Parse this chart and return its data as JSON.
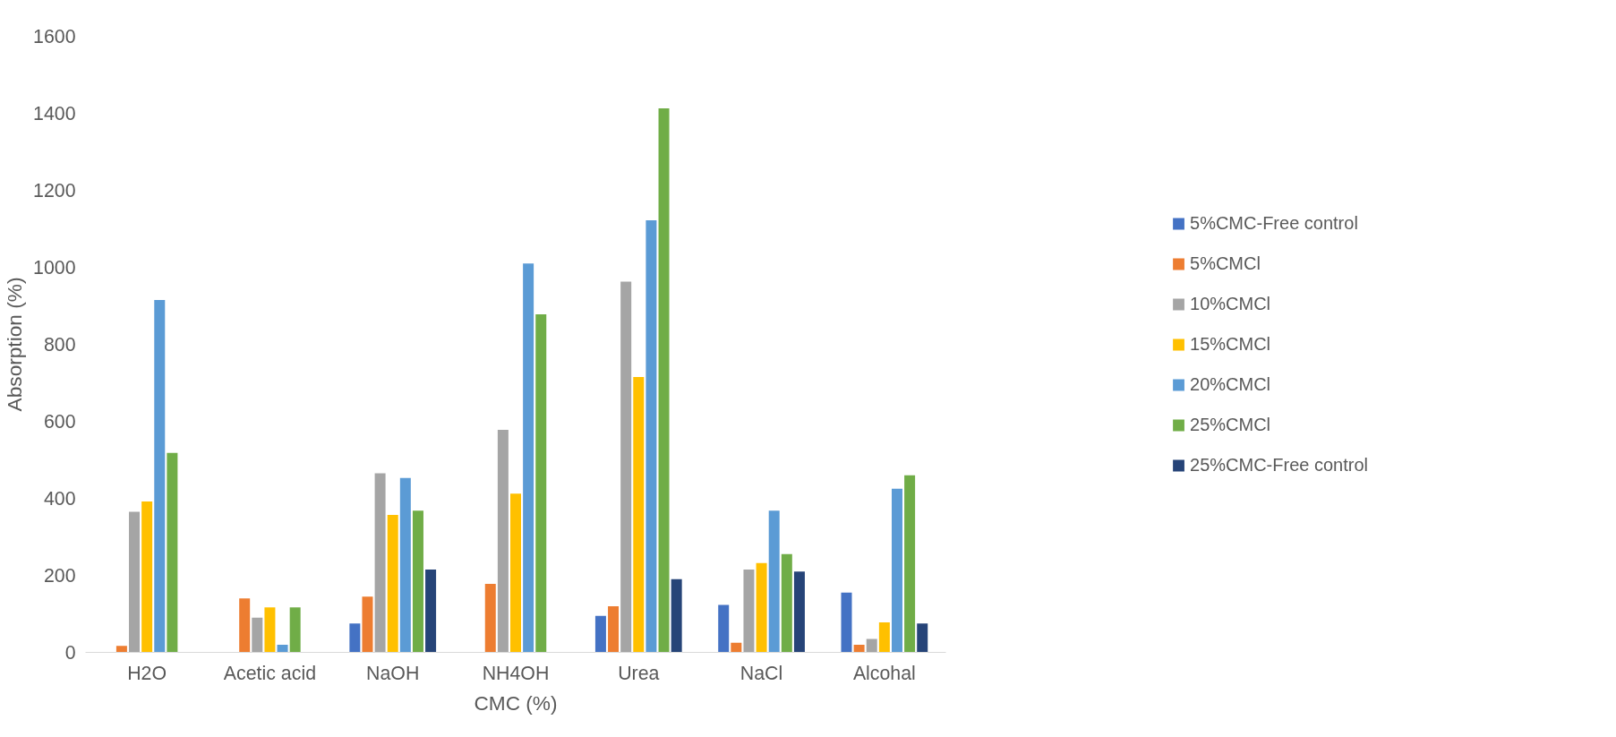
{
  "chart_data": {
    "type": "bar",
    "xlabel": "CMC (%)",
    "ylabel": "Absorption (%)",
    "categories": [
      "H2O",
      "Acetic acid",
      "NaOH",
      "NH4OH",
      "Urea",
      "NaCl",
      "Alcohal"
    ],
    "ylim": [
      0,
      1600
    ],
    "yticks": [
      0,
      200,
      400,
      600,
      800,
      1000,
      1200,
      1400,
      1600
    ],
    "grid": false,
    "legend": "right",
    "series": [
      {
        "name": "5%CMC-Free control",
        "color": "#4472c4",
        "values": [
          null,
          null,
          75,
          null,
          95,
          123,
          155
        ]
      },
      {
        "name": "5%CMCl",
        "color": "#ed7d31",
        "values": [
          17,
          140,
          145,
          178,
          120,
          25,
          20
        ]
      },
      {
        "name": "10%CMCl",
        "color": "#a5a5a5",
        "values": [
          365,
          90,
          465,
          578,
          963,
          215,
          35
        ]
      },
      {
        "name": "15%CMCl",
        "color": "#ffc000",
        "values": [
          392,
          117,
          357,
          412,
          715,
          232,
          78
        ]
      },
      {
        "name": "20%CMCl",
        "color": "#5b9bd5",
        "values": [
          915,
          20,
          453,
          1010,
          1122,
          368,
          425
        ]
      },
      {
        "name": "25%CMCl",
        "color": "#70ad47",
        "values": [
          518,
          117,
          368,
          878,
          1413,
          255,
          460
        ]
      },
      {
        "name": "25%CMC-Free control",
        "color": "#264478",
        "values": [
          null,
          null,
          215,
          null,
          190,
          210,
          75
        ]
      }
    ]
  }
}
